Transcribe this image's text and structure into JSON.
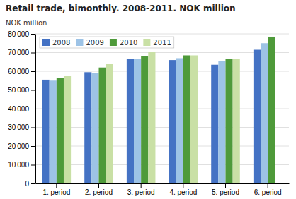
{
  "chart_data": {
    "type": "bar",
    "title": "Retail trade, bimonthly. 2008-2011. NOK million",
    "ylabel": "NOK million",
    "categories": [
      "1. period",
      "2. period",
      "3. period",
      "4. period",
      "5. period",
      "6. period"
    ],
    "series": [
      {
        "name": "2008",
        "color": "#4472C4",
        "values": [
          55500,
          59500,
          66500,
          66000,
          63500,
          71500
        ]
      },
      {
        "name": "2009",
        "color": "#9DC3E6",
        "values": [
          55000,
          59000,
          66500,
          67000,
          65500,
          75000
        ]
      },
      {
        "name": "2010",
        "color": "#4E9A3A",
        "values": [
          56500,
          62000,
          68000,
          68500,
          66500,
          78500
        ]
      },
      {
        "name": "2011",
        "color": "#C9E0A5",
        "values": [
          57500,
          64000,
          70500,
          68500,
          66500,
          null
        ]
      }
    ],
    "ylim": [
      0,
      80000
    ],
    "yticks": [
      0,
      {
        "value": 10000,
        "label": "10 000"
      },
      {
        "value": 20000,
        "label": "20 000"
      },
      {
        "value": 30000,
        "label": "30 000"
      },
      {
        "value": 40000,
        "label": "40 000"
      },
      {
        "value": 50000,
        "label": "50 000"
      },
      {
        "value": 60000,
        "label": "60 000"
      },
      {
        "value": 70000,
        "label": "70 000"
      },
      {
        "value": 80000,
        "label": "80 000"
      }
    ],
    "grid": true,
    "legend": "upper left"
  }
}
